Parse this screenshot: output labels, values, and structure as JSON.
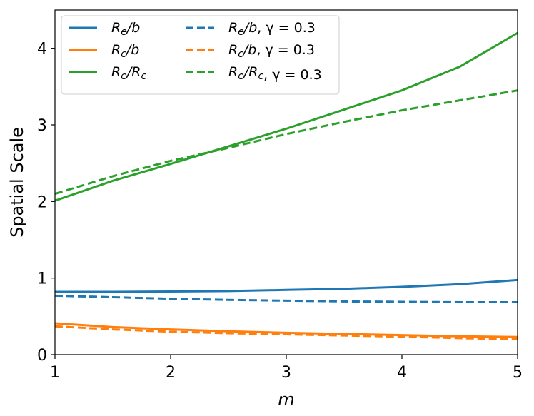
{
  "chart_data": {
    "type": "line",
    "xlabel": "m",
    "ylabel": "Spatial Scale",
    "xlim": [
      1,
      5
    ],
    "ylim": [
      0,
      4.5
    ],
    "xticks": [
      "1",
      "2",
      "3",
      "4",
      "5"
    ],
    "yticks": [
      "0",
      "1",
      "2",
      "3",
      "4"
    ],
    "grid": false,
    "legend_position": "top-left",
    "x": [
      1.0,
      1.5,
      2.0,
      2.5,
      3.0,
      3.5,
      4.0,
      4.5,
      5.0
    ],
    "series": [
      {
        "name": "Re/b",
        "legend_main": "R",
        "legend_sub": "e",
        "legend_rest": "/b",
        "legend_extra": "",
        "color": "#1f77b4",
        "dashed": false,
        "values": [
          0.82,
          0.82,
          0.825,
          0.83,
          0.845,
          0.86,
          0.885,
          0.92,
          0.975
        ]
      },
      {
        "name": "Rc/b",
        "legend_main": "R",
        "legend_sub": "c",
        "legend_rest": "/b",
        "legend_extra": "",
        "color": "#ff7f0e",
        "dashed": false,
        "values": [
          0.41,
          0.36,
          0.33,
          0.305,
          0.285,
          0.27,
          0.255,
          0.24,
          0.23
        ]
      },
      {
        "name": "Re/Rc",
        "legend_main": "R",
        "legend_sub": "e",
        "legend_rest": "/R",
        "legend_sub2": "c",
        "legend_extra": "",
        "color": "#2ca02c",
        "dashed": false,
        "values": [
          2.01,
          2.27,
          2.49,
          2.72,
          2.95,
          3.2,
          3.45,
          3.76,
          4.2
        ]
      },
      {
        "name": "Re/b, γ = 0.3",
        "legend_main": "R",
        "legend_sub": "e",
        "legend_rest": "/b",
        "legend_extra": ", γ = 0.3",
        "color": "#1f77b4",
        "dashed": true,
        "values": [
          0.77,
          0.75,
          0.73,
          0.715,
          0.705,
          0.695,
          0.69,
          0.685,
          0.685
        ]
      },
      {
        "name": "Rc/b, γ = 0.3",
        "legend_main": "R",
        "legend_sub": "c",
        "legend_rest": "/b",
        "legend_extra": ", γ = 0.3",
        "color": "#ff7f0e",
        "dashed": true,
        "values": [
          0.37,
          0.33,
          0.3,
          0.28,
          0.265,
          0.25,
          0.235,
          0.215,
          0.2
        ]
      },
      {
        "name": "Re/Rc, γ = 0.3",
        "legend_main": "R",
        "legend_sub": "e",
        "legend_rest": "/R",
        "legend_sub2": "c",
        "legend_extra": ", γ = 0.3",
        "color": "#2ca02c",
        "dashed": true,
        "values": [
          2.1,
          2.33,
          2.53,
          2.7,
          2.88,
          3.04,
          3.19,
          3.32,
          3.45
        ]
      }
    ]
  }
}
